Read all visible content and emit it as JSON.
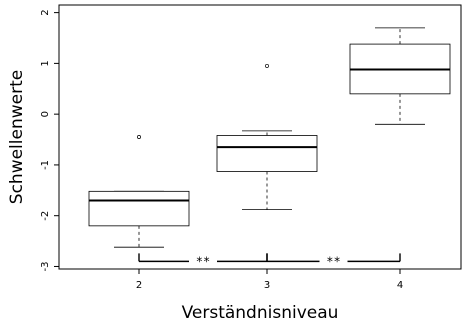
{
  "chart_data": {
    "type": "boxplot",
    "xlabel": "Verständnisniveau",
    "ylabel": "Schwellenwerte",
    "categories": [
      "2",
      "3",
      "4"
    ],
    "yticks": [
      -3,
      -2,
      -1,
      0,
      1,
      2
    ],
    "ylim": [
      -3.05,
      2.15
    ],
    "boxes": [
      {
        "category": "2",
        "whisker_low": -2.62,
        "q1": -2.2,
        "median": -1.7,
        "q3": -1.52,
        "whisker_high": -1.52,
        "outliers": [
          -0.45
        ]
      },
      {
        "category": "3",
        "whisker_low": -1.88,
        "q1": -1.13,
        "median": -0.65,
        "q3": -0.42,
        "whisker_high": -0.33,
        "outliers": [
          0.95
        ]
      },
      {
        "category": "4",
        "whisker_low": -0.2,
        "q1": 0.4,
        "median": 0.88,
        "q3": 1.38,
        "whisker_high": 1.7,
        "outliers": []
      }
    ],
    "significance": [
      {
        "from": "2",
        "to": "3",
        "label": "**",
        "y": -2.9
      },
      {
        "from": "3",
        "to": "4",
        "label": "**",
        "y": -2.9
      }
    ]
  }
}
